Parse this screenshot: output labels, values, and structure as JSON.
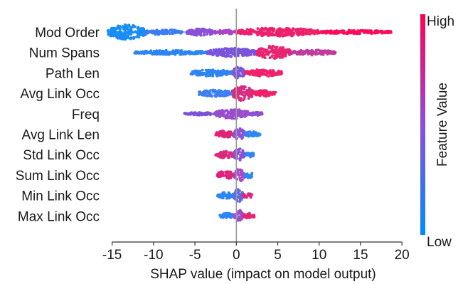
{
  "chart_data": {
    "type": "scatter",
    "subtype": "shap-beeswarm",
    "xlabel": "SHAP value (impact on model output)",
    "xlim": [
      -16,
      20.5
    ],
    "x_ticks": [
      -15,
      -10,
      -5,
      0,
      5,
      10,
      15,
      20
    ],
    "x_tick_labels": [
      "-15",
      "-10",
      "-5",
      "0",
      "5",
      "10",
      "15",
      "20"
    ],
    "grid": false,
    "colorbar": {
      "label": "Feature Value",
      "high_label": "High",
      "low_label": "Low",
      "high_color": "#ff0052",
      "mid_color": "#8c4fd6",
      "low_color": "#008bfb"
    },
    "features": [
      {
        "name": "Mod Order",
        "min": -15.5,
        "max": 18.7,
        "clusters": [
          {
            "from": -15.5,
            "to": -11.0,
            "width": 0.95,
            "color": "#1a8cf5"
          },
          {
            "from": -11.0,
            "to": -6.5,
            "width": 0.35,
            "color": "#3c7cf0"
          },
          {
            "from": -6.0,
            "to": -2.5,
            "width": 0.45,
            "color": "#8a4fd8"
          },
          {
            "from": -2.5,
            "to": 0.0,
            "width": 0.3,
            "color": "#a847c8"
          },
          {
            "from": 0.0,
            "to": 10.0,
            "width": 0.55,
            "color": "#ef1f6a"
          },
          {
            "from": 10.0,
            "to": 18.7,
            "width": 0.25,
            "color": "#ff0a5c"
          }
        ]
      },
      {
        "name": "Num Spans",
        "min": -12.3,
        "max": 12.0,
        "clusters": [
          {
            "from": -12.3,
            "to": -3.5,
            "width": 0.28,
            "color": "#2a86f4"
          },
          {
            "from": -3.5,
            "to": 2.5,
            "width": 0.55,
            "color": "#7b54dc"
          },
          {
            "from": 2.5,
            "to": 6.5,
            "width": 0.85,
            "color": "#e8256e"
          },
          {
            "from": 6.5,
            "to": 12.0,
            "width": 0.35,
            "color": "#c13b9c"
          }
        ]
      },
      {
        "name": "Path Len",
        "min": -5.5,
        "max": 5.5,
        "clusters": [
          {
            "from": -5.5,
            "to": -0.5,
            "width": 0.45,
            "color": "#2f83f2"
          },
          {
            "from": -0.5,
            "to": 1.0,
            "width": 0.75,
            "color": "#7d55dd"
          },
          {
            "from": 1.0,
            "to": 5.5,
            "width": 0.45,
            "color": "#f0216a"
          }
        ]
      },
      {
        "name": "Avg Link Occ",
        "min": -4.5,
        "max": 4.8,
        "clusters": [
          {
            "from": -4.5,
            "to": -0.5,
            "width": 0.45,
            "color": "#3b7ff1"
          },
          {
            "from": -0.5,
            "to": 2.0,
            "width": 0.95,
            "color": "#d92d80"
          },
          {
            "from": 2.0,
            "to": 4.8,
            "width": 0.4,
            "color": "#f0206a"
          }
        ]
      },
      {
        "name": "Freq",
        "min": -6.3,
        "max": 3.2,
        "clusters": [
          {
            "from": -6.3,
            "to": -2.5,
            "width": 0.18,
            "color": "#7a52d6"
          },
          {
            "from": -2.5,
            "to": 1.5,
            "width": 0.65,
            "color": "#9a4cce"
          },
          {
            "from": 1.5,
            "to": 3.2,
            "width": 0.25,
            "color": "#8f50d3"
          }
        ]
      },
      {
        "name": "Avg Link Len",
        "min": -2.5,
        "max": 2.9,
        "clusters": [
          {
            "from": -2.5,
            "to": -0.3,
            "width": 0.45,
            "color": "#e02576"
          },
          {
            "from": -0.3,
            "to": 1.0,
            "width": 0.8,
            "color": "#8e51d4"
          },
          {
            "from": 1.0,
            "to": 2.9,
            "width": 0.35,
            "color": "#2e86f3"
          }
        ]
      },
      {
        "name": "Std Link Occ",
        "min": -2.5,
        "max": 2.2,
        "clusters": [
          {
            "from": -2.5,
            "to": -0.3,
            "width": 0.45,
            "color": "#dc2a7a"
          },
          {
            "from": -0.3,
            "to": 1.0,
            "width": 0.8,
            "color": "#8c50d4"
          },
          {
            "from": 1.0,
            "to": 2.2,
            "width": 0.35,
            "color": "#2f86f3"
          }
        ]
      },
      {
        "name": "Sum Link Occ",
        "min": -2.3,
        "max": 2.0,
        "clusters": [
          {
            "from": -2.3,
            "to": -0.2,
            "width": 0.55,
            "color": "#e0237a"
          },
          {
            "from": -0.2,
            "to": 1.0,
            "width": 0.85,
            "color": "#a84ac6"
          },
          {
            "from": 1.0,
            "to": 2.0,
            "width": 0.4,
            "color": "#2d88f3"
          }
        ]
      },
      {
        "name": "Min Link Occ",
        "min": -2.3,
        "max": 2.0,
        "clusters": [
          {
            "from": -2.3,
            "to": -0.3,
            "width": 0.4,
            "color": "#2e86f4"
          },
          {
            "from": -0.3,
            "to": 0.8,
            "width": 0.85,
            "color": "#5a68e6"
          },
          {
            "from": 0.8,
            "to": 2.0,
            "width": 0.35,
            "color": "#e0287a"
          }
        ]
      },
      {
        "name": "Max Link Occ",
        "min": -2.0,
        "max": 2.2,
        "clusters": [
          {
            "from": -2.0,
            "to": -0.3,
            "width": 0.4,
            "color": "#2f85f3"
          },
          {
            "from": -0.3,
            "to": 0.8,
            "width": 0.8,
            "color": "#9d4dcb"
          },
          {
            "from": 0.8,
            "to": 2.2,
            "width": 0.35,
            "color": "#e62372"
          }
        ]
      }
    ]
  }
}
